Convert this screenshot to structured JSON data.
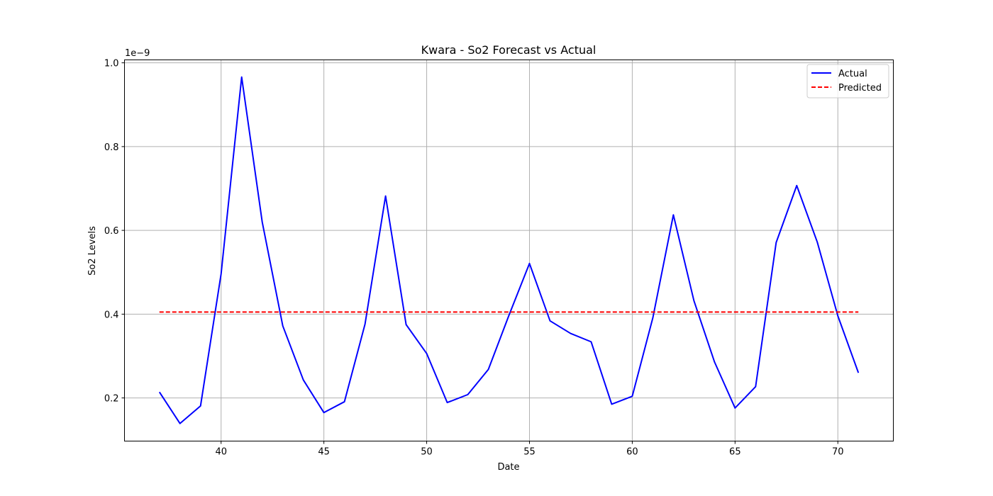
{
  "chart_data": {
    "type": "line",
    "title": "Kwara - So2 Forecast vs Actual",
    "xlabel": "Date",
    "ylabel": "So2 Levels",
    "y_offset_label": "1e−9",
    "xlim": [
      35.3,
      72.7
    ],
    "ylim": [
      0.097,
      1.007
    ],
    "x_ticks": [
      40,
      45,
      50,
      55,
      60,
      65,
      70
    ],
    "x_tick_labels": [
      "40",
      "45",
      "50",
      "55",
      "60",
      "65",
      "70"
    ],
    "y_ticks": [
      0.2,
      0.4,
      0.6,
      0.8,
      1.0
    ],
    "y_tick_labels": [
      "0.2",
      "0.4",
      "0.6",
      "0.8",
      "1.0"
    ],
    "grid": true,
    "legend_position": "top-right",
    "series": [
      {
        "name": "Actual",
        "color": "#0000ff",
        "style": "solid",
        "x": [
          37,
          38,
          39,
          40,
          41,
          42,
          43,
          44,
          45,
          46,
          47,
          48,
          49,
          50,
          51,
          52,
          53,
          54,
          55,
          56,
          57,
          58,
          59,
          60,
          61,
          62,
          63,
          64,
          65,
          66,
          67,
          68,
          69,
          70,
          71
        ],
        "values": [
          0.214,
          0.139,
          0.181,
          0.496,
          0.966,
          0.62,
          0.372,
          0.243,
          0.165,
          0.191,
          0.376,
          0.682,
          0.375,
          0.306,
          0.189,
          0.208,
          0.268,
          0.397,
          0.521,
          0.384,
          0.354,
          0.334,
          0.185,
          0.204,
          0.391,
          0.637,
          0.432,
          0.286,
          0.176,
          0.227,
          0.571,
          0.707,
          0.572,
          0.396,
          0.26
        ]
      },
      {
        "name": "Predicted",
        "color": "#ff0000",
        "style": "dashed",
        "x": [
          37,
          38,
          39,
          40,
          41,
          42,
          43,
          44,
          45,
          46,
          47,
          48,
          49,
          50,
          51,
          52,
          53,
          54,
          55,
          56,
          57,
          58,
          59,
          60,
          61,
          62,
          63,
          64,
          65,
          66,
          67,
          68,
          69,
          70,
          71
        ],
        "values": [
          0.405,
          0.405,
          0.405,
          0.405,
          0.405,
          0.405,
          0.405,
          0.405,
          0.405,
          0.405,
          0.405,
          0.405,
          0.405,
          0.405,
          0.405,
          0.405,
          0.405,
          0.405,
          0.405,
          0.405,
          0.405,
          0.405,
          0.405,
          0.405,
          0.405,
          0.405,
          0.405,
          0.405,
          0.405,
          0.405,
          0.405,
          0.405,
          0.405,
          0.405,
          0.405
        ]
      }
    ]
  }
}
